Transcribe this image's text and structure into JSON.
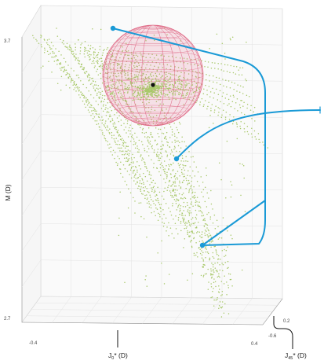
{
  "chart_data": {
    "type": "scatter",
    "projection": "3d",
    "title": "",
    "axes": {
      "x": {
        "label": "J",
        "subscript": "0",
        "suffix": "* (D)",
        "ticks": [
          "-0.4",
          "0.4"
        ],
        "range": [
          -0.4,
          0.4
        ]
      },
      "y": {
        "label": "J",
        "subscript": "45",
        "suffix": "* (D)",
        "ticks": [
          "0.2",
          "-0.6"
        ]
      },
      "z": {
        "label": "M (D)",
        "ticks": [
          "3.7",
          "2.7"
        ],
        "range": [
          2.7,
          3.7
        ]
      }
    },
    "grid": true,
    "series": [
      {
        "marker": "point-cloud",
        "color": "#a8c86a",
        "approx_points": 1500
      }
    ],
    "sphere": {
      "center": {
        "J0": 0.0,
        "M": 3.5
      },
      "color": "#e06c88",
      "wireframe": true
    },
    "center_point": {
      "J0": 0.0,
      "M": 3.5,
      "color": "#111111"
    },
    "callout_color": "#1a9ad6"
  }
}
